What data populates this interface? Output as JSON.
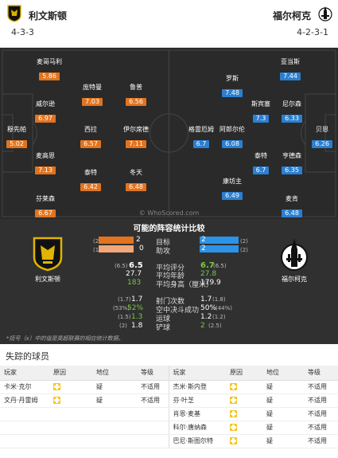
{
  "home": {
    "name": "利文斯顿",
    "formation": "4-3-3",
    "crest_label": "利文斯顿",
    "color": "#e2741f"
  },
  "away": {
    "name": "福尔柯克",
    "formation": "4-2-3-1",
    "crest_label": "福尔柯克",
    "color": "#2b7fd0"
  },
  "home_players": [
    {
      "name": "麦哥马利",
      "rating": "5.86"
    },
    {
      "name": "庞特曼",
      "rating": "7.03"
    },
    {
      "name": "鲁普",
      "rating": "6.56"
    },
    {
      "name": "威尔逊",
      "rating": "6.97"
    },
    {
      "name": "穆先帕",
      "rating": "5.02"
    },
    {
      "name": "西拉",
      "rating": "6.57"
    },
    {
      "name": "伊尔席德",
      "rating": "7.11"
    },
    {
      "name": "麦高恩",
      "rating": "7.13"
    },
    {
      "name": "泰特",
      "rating": "6.42"
    },
    {
      "name": "冬天",
      "rating": "6.48"
    },
    {
      "name": "芬莱森",
      "rating": "6.67"
    }
  ],
  "away_players": [
    {
      "name": "亚当斯",
      "rating": "7.44"
    },
    {
      "name": "罗斯",
      "rating": "7.48"
    },
    {
      "name": "斯宾塞",
      "rating": "7.3"
    },
    {
      "name": "尼尔森",
      "rating": "6.33"
    },
    {
      "name": "格雷厄姆",
      "rating": "6.7"
    },
    {
      "name": "阿郎尔伦",
      "rating": "6.08"
    },
    {
      "name": "贝恩",
      "rating": "6.26"
    },
    {
      "name": "泰特",
      "rating": "6.7"
    },
    {
      "name": "亨德森",
      "rating": "6.35"
    },
    {
      "name": "康坊主",
      "rating": "6.49"
    },
    {
      "name": "麦肯",
      "rating": "6.48"
    }
  ],
  "watermark": "© WhoScored.com",
  "comparison": {
    "title": "可能的阵容统计比较",
    "rows_bars": [
      {
        "label": "目标",
        "home_sm": "(2)",
        "home": "2",
        "away": "2",
        "away_sm": "(2)",
        "home_frac": 0.6,
        "away_frac": 0.6,
        "home_pale": false,
        "away_pale": false
      },
      {
        "label": "助攻",
        "home_sm": "(1)",
        "home": "0",
        "away": "2",
        "away_sm": "(2)",
        "home_frac": 0.6,
        "away_frac": 0.6,
        "home_pale": true,
        "away_pale": false
      }
    ],
    "rows_mid": [
      {
        "label": "平均评分",
        "home_sm": "(6.5)",
        "home": "6.5",
        "away": "6.7",
        "away_sm": "(6.5)",
        "home_green": false,
        "away_green": true
      },
      {
        "label": "平均年龄",
        "home_sm": "",
        "home": "27.7",
        "away": "27.8",
        "away_sm": "",
        "home_green": false,
        "away_green": true
      },
      {
        "label": "平均身高（厘米）",
        "home_sm": "",
        "home": "183",
        "away": "179.9",
        "away_sm": "",
        "home_green": true,
        "away_green": false
      }
    ],
    "rows_low": [
      {
        "label": "射门次数",
        "home_sm": "(1.7)",
        "home": "1.7",
        "away": "1.7",
        "away_sm": "(1.8)",
        "home_green": false,
        "away_green": false
      },
      {
        "label": "空中决斗成功",
        "home_sm": "(53%)",
        "home": "52%",
        "away": "50%",
        "away_sm": "(44%)",
        "home_green": true,
        "away_green": false
      },
      {
        "label": "运球",
        "home_sm": "(1.5)",
        "home": "1.3",
        "away": "1.2",
        "away_sm": "(1.2)",
        "home_green": true,
        "away_green": false
      },
      {
        "label": "铲球",
        "home_sm": "(2)",
        "home": "1.8",
        "away": "2",
        "away_sm": "(2.5)",
        "home_green": false,
        "away_green": true
      }
    ],
    "footnote": "*括号（x）中的值是英超联赛的相应统计数据。"
  },
  "missing": {
    "title": "失踪的球员",
    "headers": [
      "玩家",
      "原因",
      "地位",
      "等级"
    ],
    "status_text": "疑",
    "grade_text": "不适用",
    "home": [
      {
        "name": "卡米·克尔"
      },
      {
        "name": "文丹·丹雷姆"
      }
    ],
    "away": [
      {
        "name": "杰米·斯内登"
      },
      {
        "name": "芬·叶芝"
      },
      {
        "name": "肖恩·麦基"
      },
      {
        "name": "科尔·唐纳森"
      },
      {
        "name": "巴尼·斯图尔特"
      }
    ]
  }
}
